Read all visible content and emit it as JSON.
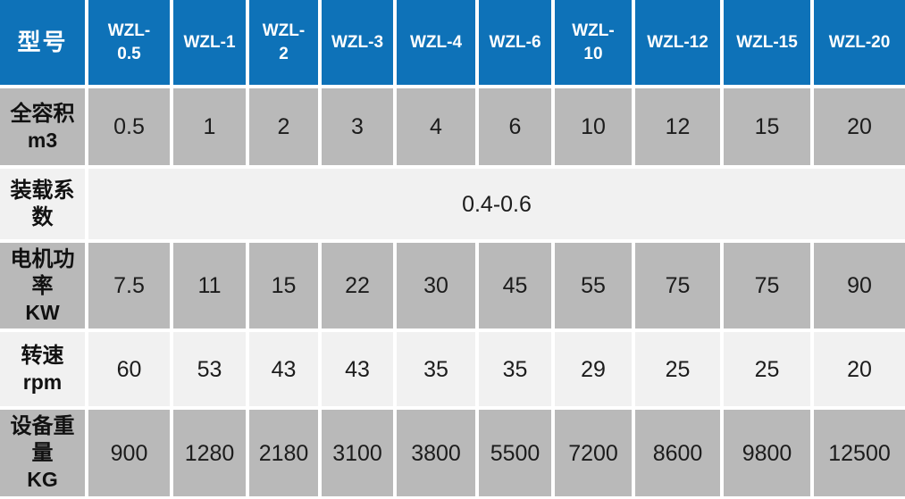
{
  "colors": {
    "header_bg": "#0e72b8",
    "header_text": "#ffffff",
    "row_dark_bg": "#b9b9b9",
    "row_light_bg": "#f1f1f1",
    "grid_gap": "#ffffff",
    "value_text": "#1c1c1c"
  },
  "table": {
    "corner_label": "型号",
    "models": [
      "WZL-0.5",
      "WZL-1",
      "WZL-2",
      "WZL-3",
      "WZL-4",
      "WZL-6",
      "WZL-10",
      "WZL-12",
      "WZL-15",
      "WZL-20"
    ],
    "rows": [
      {
        "label": "全容积",
        "unit": "m3",
        "values": [
          "0.5",
          "1",
          "2",
          "3",
          "4",
          "6",
          "10",
          "12",
          "15",
          "20"
        ]
      },
      {
        "label": "装载系数",
        "merged_value": "0.4-0.6"
      },
      {
        "label": "电机功率",
        "unit": "KW",
        "values": [
          "7.5",
          "11",
          "15",
          "22",
          "30",
          "45",
          "55",
          "75",
          "75",
          "90"
        ]
      },
      {
        "label": "转速",
        "unit": "rpm",
        "values": [
          "60",
          "53",
          "43",
          "43",
          "35",
          "35",
          "29",
          "25",
          "25",
          "20"
        ]
      },
      {
        "label": "设备重量",
        "unit": "KG",
        "values": [
          "900",
          "1280",
          "2180",
          "3100",
          "3800",
          "5500",
          "7200",
          "8600",
          "9800",
          "12500"
        ]
      }
    ]
  }
}
